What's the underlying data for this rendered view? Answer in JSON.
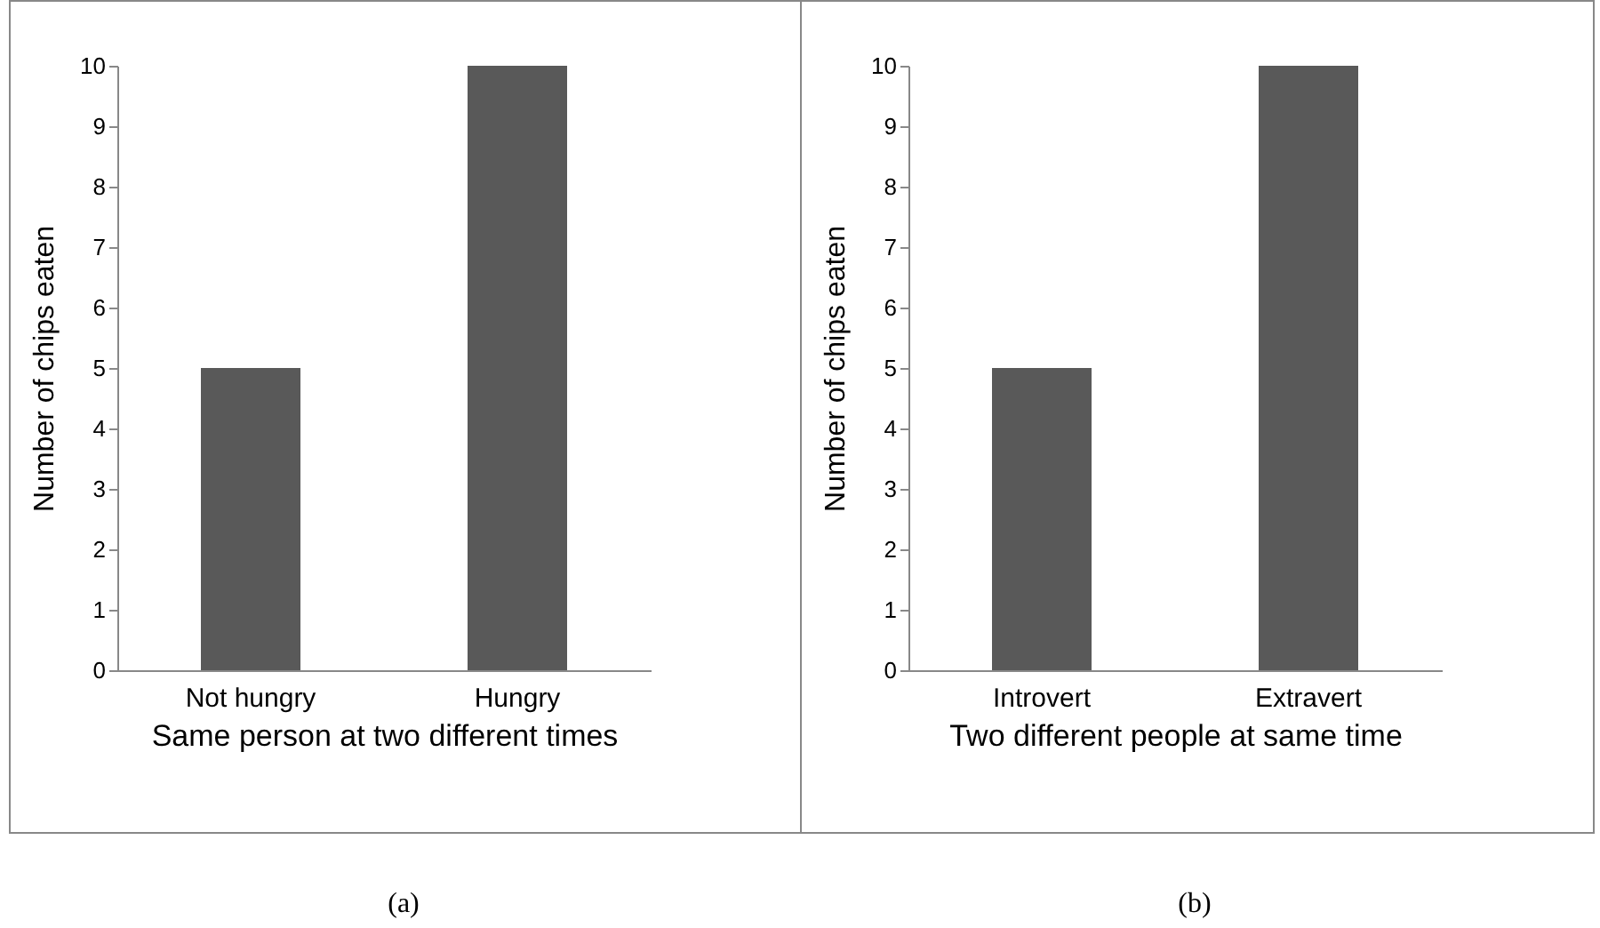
{
  "chart_data": [
    {
      "type": "bar",
      "categories": [
        "Not hungry",
        "Hungry"
      ],
      "values": [
        5,
        10
      ],
      "color": "#595959",
      "xlabel": "Same person at two different times",
      "ylabel": "Number of chips eaten",
      "ylim": [
        0,
        10
      ],
      "yticks": [
        0,
        1,
        2,
        3,
        4,
        5,
        6,
        7,
        8,
        9,
        10
      ],
      "annotations": [
        "(a)"
      ]
    },
    {
      "type": "bar",
      "categories": [
        "Introvert",
        "Extravert"
      ],
      "values": [
        5,
        10
      ],
      "color": "#595959",
      "xlabel": "Two different people at same time",
      "ylabel": "Number of chips eaten",
      "ylim": [
        0,
        10
      ],
      "yticks": [
        0,
        1,
        2,
        3,
        4,
        5,
        6,
        7,
        8,
        9,
        10
      ],
      "annotations": [
        "(b)"
      ]
    }
  ]
}
